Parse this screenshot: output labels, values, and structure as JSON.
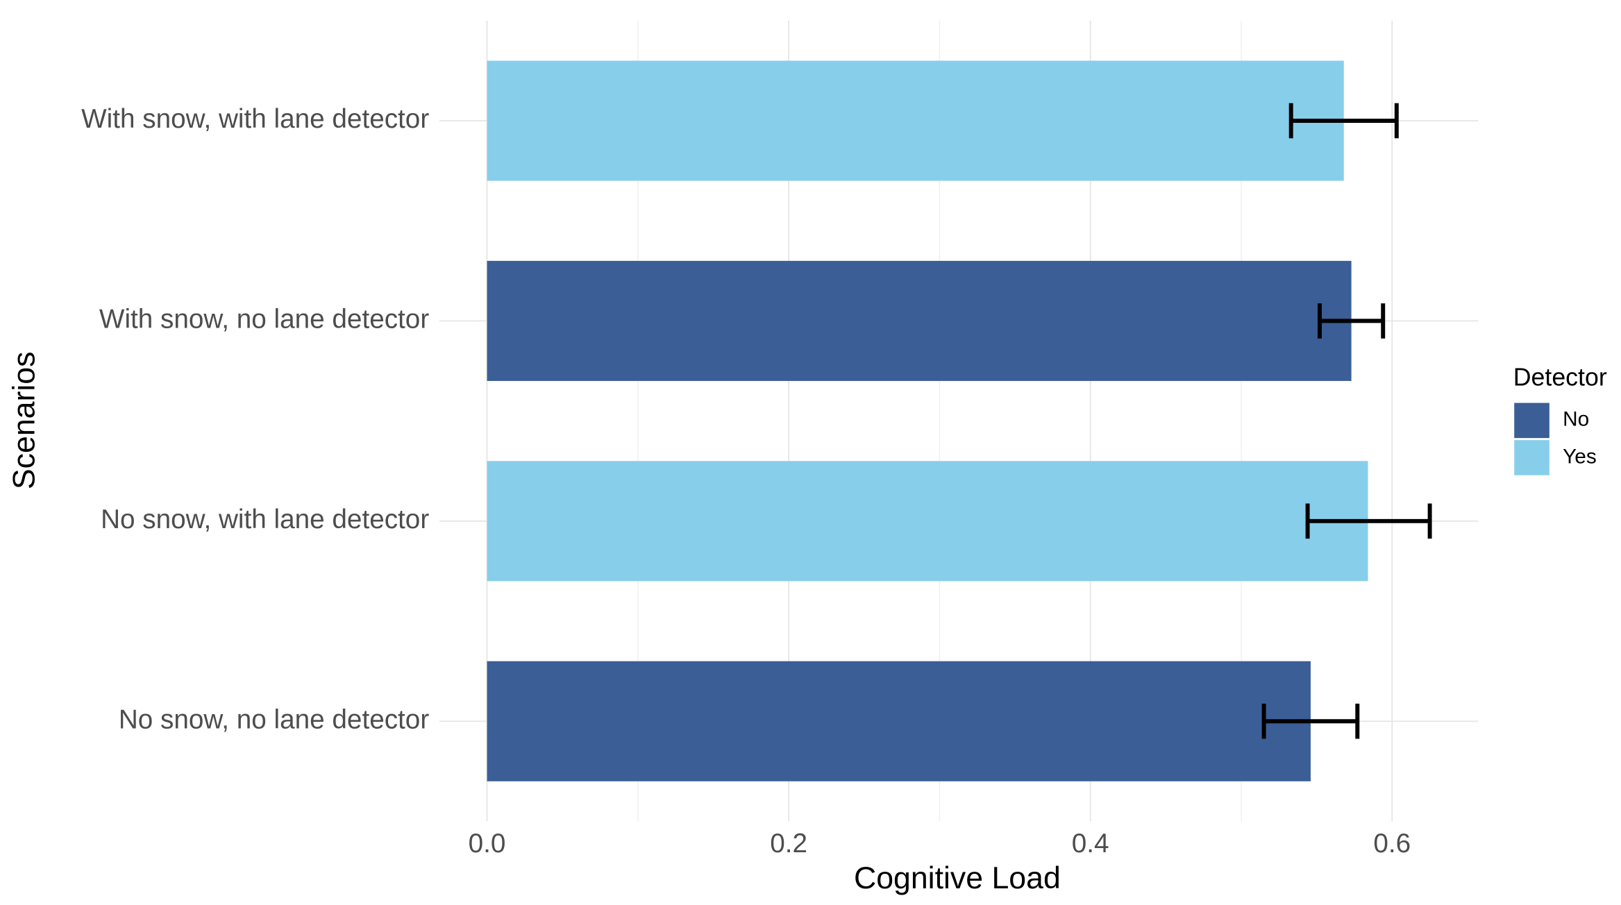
{
  "chart_data": {
    "type": "bar",
    "orientation": "horizontal",
    "y_label": "Scenarios",
    "x_label": "Cognitive Load",
    "categories": [
      "With snow, with lane detector",
      "With snow, no lane detector",
      "No snow, with lane detector",
      "No snow, no lane detector"
    ],
    "series": [
      {
        "name": "No",
        "color": "#3b5e96",
        "values": [
          null,
          0.573,
          null,
          0.546
        ],
        "lower": [
          null,
          0.552,
          null,
          0.515
        ],
        "upper": [
          null,
          0.594,
          null,
          0.577
        ]
      },
      {
        "name": "Yes",
        "color": "#87ceeb",
        "values": [
          0.568,
          null,
          0.584,
          null
        ],
        "lower": [
          0.533,
          null,
          0.544,
          null
        ],
        "upper": [
          0.603,
          null,
          0.625,
          null
        ]
      }
    ],
    "xlim": [
      -0.0315,
      0.657
    ],
    "xticks": [
      {
        "value": 0,
        "label": "0.0"
      },
      0.2,
      0.4,
      0.6
    ],
    "xminor": [
      0.1,
      0.3,
      0.5
    ],
    "grid": true,
    "legend_title": "Detector",
    "legend": "right"
  }
}
